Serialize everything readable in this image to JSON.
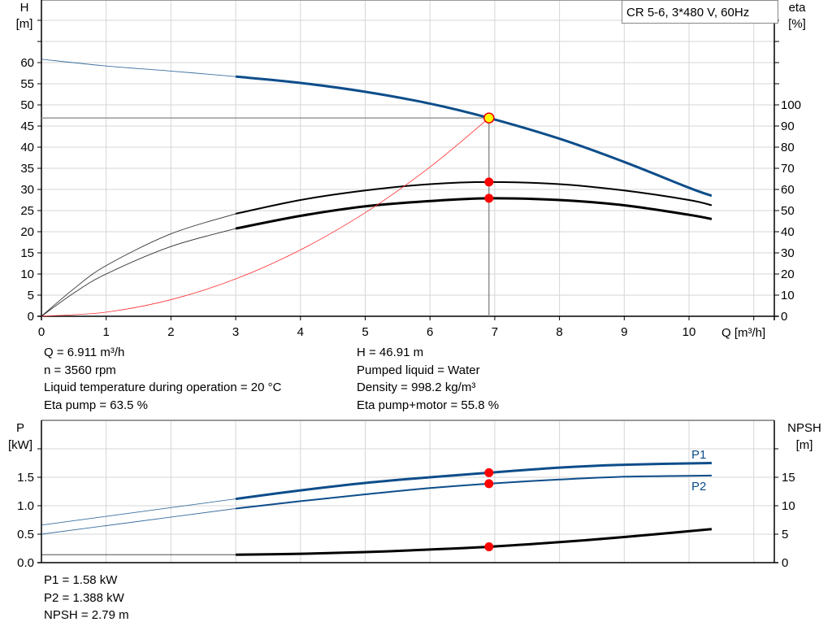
{
  "chart_data": [
    {
      "type": "line",
      "title": "CR 5-6, 3*480 V, 60Hz",
      "xlabel": "Q [m³/h]",
      "ylabel_left": [
        "H",
        "[m]"
      ],
      "ylabel_right": [
        "eta",
        "[%]"
      ],
      "xlim": [
        0,
        11.4
      ],
      "ylim_left": [
        0,
        75
      ],
      "ylim_right": [
        0,
        150
      ],
      "x_ticks": [
        "0",
        "1",
        "2",
        "3",
        "4",
        "5",
        "6",
        "7",
        "8",
        "9",
        "10"
      ],
      "y_ticks_left": [
        "0",
        "5",
        "10",
        "15",
        "20",
        "25",
        "30",
        "35",
        "40",
        "45",
        "50",
        "55",
        "60"
      ],
      "y_ticks_right": [
        "0",
        "10",
        "20",
        "30",
        "40",
        "50",
        "60",
        "70",
        "80",
        "90",
        "100"
      ],
      "grid": true,
      "duty_point": {
        "Q": 6.911,
        "H": 46.91,
        "eta_pump": 63.5,
        "eta_total": 55.8
      },
      "series": [
        {
          "key": "H",
          "axis": "left",
          "color": "#0d4d8a",
          "thick_from": 3,
          "x": [
            0,
            1,
            2,
            3,
            4,
            5,
            6,
            6.911,
            8,
            9,
            10,
            10.35
          ],
          "y": [
            60.8,
            59.2,
            58,
            56.7,
            55.2,
            53.1,
            50.3,
            46.91,
            42,
            36.5,
            30.4,
            28.5
          ]
        },
        {
          "key": "eta_pump",
          "axis": "right",
          "color": "#000000",
          "thick_from": 3,
          "x": [
            0,
            0.5,
            1,
            2,
            3,
            4,
            5,
            6,
            6.911,
            8,
            9,
            10,
            10.35
          ],
          "y": [
            0,
            13,
            24,
            39,
            48.5,
            55,
            59.5,
            62.5,
            63.5,
            62.5,
            59.5,
            55,
            52.5
          ]
        },
        {
          "key": "eta_total",
          "axis": "right",
          "color": "#000000",
          "thick_from": 3,
          "x": [
            0,
            0.5,
            1,
            2,
            3,
            4,
            5,
            6,
            6.911,
            8,
            9,
            10,
            10.35
          ],
          "y": [
            0,
            11,
            20,
            33,
            41.5,
            47.5,
            52,
            54.5,
            55.8,
            55,
            52.5,
            48,
            46
          ]
        },
        {
          "key": "system",
          "axis": "left",
          "color": "#ff3030",
          "thick_from": 99,
          "x": [
            0,
            1,
            2,
            3,
            4,
            5,
            6,
            6.911
          ],
          "y": [
            0,
            0.98,
            3.93,
            8.84,
            15.7,
            24.5,
            35.3,
            46.91
          ]
        }
      ]
    },
    {
      "type": "line",
      "xlabel": "",
      "ylabel_left": [
        "P",
        "[kW]"
      ],
      "ylabel_right": [
        "NPSH",
        "[m]"
      ],
      "xlim": [
        0,
        11.4
      ],
      "ylim_left": [
        0,
        2.5
      ],
      "ylim_right": [
        0,
        25
      ],
      "y_ticks_left": [
        "0.0",
        "0.5",
        "1.0",
        "1.5"
      ],
      "y_ticks_right": [
        "0",
        "5",
        "10",
        "15"
      ],
      "grid": true,
      "series": [
        {
          "key": "P1",
          "name": "P1",
          "axis": "left",
          "color": "#0d4d8a",
          "thick_from": 3,
          "x": [
            0,
            3,
            4,
            5,
            6,
            6.911,
            8,
            9,
            10.35
          ],
          "y": [
            0.66,
            1.12,
            1.27,
            1.4,
            1.5,
            1.58,
            1.67,
            1.72,
            1.75
          ]
        },
        {
          "key": "P2",
          "name": "P2",
          "axis": "left",
          "color": "#0d4d8a",
          "thick_from": 3,
          "x": [
            0,
            3,
            4,
            5,
            6,
            6.911,
            8,
            9,
            10.35
          ],
          "y": [
            0.5,
            0.95,
            1.08,
            1.2,
            1.31,
            1.388,
            1.46,
            1.51,
            1.53
          ]
        },
        {
          "key": "NPSH",
          "axis": "right",
          "color": "#000000",
          "thick_from": 3,
          "x": [
            0,
            3,
            4,
            5,
            6,
            6.911,
            8,
            9,
            10.35
          ],
          "y": [
            1.4,
            1.4,
            1.55,
            1.85,
            2.3,
            2.79,
            3.6,
            4.5,
            5.9
          ]
        }
      ],
      "duty_point": {
        "Q": 6.911,
        "P1": 1.58,
        "P2": 1.388,
        "NPSH": 2.79
      }
    }
  ],
  "info_top_left": [
    "Q = 6.911 m³/h",
    "n = 3560 rpm",
    "Liquid temperature during operation = 20 °C",
    "Eta pump = 63.5 %"
  ],
  "info_top_right": [
    "H = 46.91 m",
    "Pumped liquid = Water",
    "Density = 998.2 kg/m³",
    "Eta pump+motor = 55.8 %"
  ],
  "info_bottom": [
    "P1 = 1.58 kW",
    "P2 = 1.388 kW",
    "NPSH = 2.79 m"
  ]
}
